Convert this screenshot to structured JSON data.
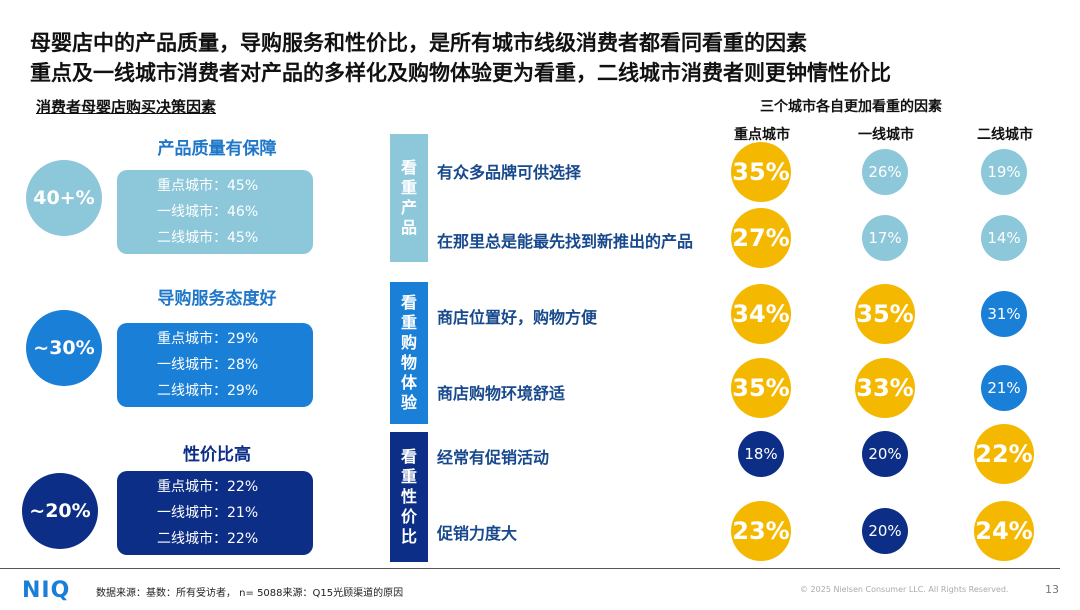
{
  "title": {
    "line1": "母婴店中的产品质量，导购服务和性价比，是所有城市线级消费者都看同看重的因素",
    "line2": "重点及一线城市消费者对产品的多样化及购物体验更为看重，二线城市消费者则更钟情性价比"
  },
  "left_header": "消费者母婴店购买决策因素",
  "right_header": "三个城市各自更加看重的因素",
  "colors": {
    "light_blue": "#8cc7da",
    "mid_blue": "#1a7fd6",
    "dark_blue": "#0d2e86",
    "gold": "#f5b800",
    "title_blue": "#1f77c9",
    "label_blue": "#17498c"
  },
  "factors": [
    {
      "title": "产品质量有保障",
      "badge": "40+%",
      "lines": [
        "重点城市：45%",
        "一线城市：46%",
        "二线城市：45%"
      ]
    },
    {
      "title": "导购服务态度好",
      "badge": "~30%",
      "lines": [
        "重点城市：29%",
        "一线城市：28%",
        "二线城市：29%"
      ]
    },
    {
      "title": "性价比高",
      "badge": "~20%",
      "lines": [
        "重点城市：22%",
        "一线城市：21%",
        "二线城市：22%"
      ]
    }
  ],
  "categories": [
    "看重产品",
    "看重购物体验",
    "看重性价比"
  ],
  "chart_data": {
    "type": "table",
    "columns": [
      "重点城市",
      "一线城市",
      "二线城市"
    ],
    "rows": [
      {
        "label": "有众多品牌可供选择",
        "values": [
          35,
          26,
          19
        ],
        "highlight": [
          true,
          false,
          false
        ]
      },
      {
        "label": "在那里总是能最先找到新推出的产品",
        "values": [
          27,
          17,
          14
        ],
        "highlight": [
          true,
          false,
          false
        ]
      },
      {
        "label": "商店位置好，购物方便",
        "values": [
          34,
          35,
          31
        ],
        "highlight": [
          true,
          true,
          false
        ]
      },
      {
        "label": "商店购物环境舒适",
        "values": [
          35,
          33,
          21
        ],
        "highlight": [
          true,
          true,
          false
        ]
      },
      {
        "label": "经常有促销活动",
        "values": [
          18,
          20,
          22
        ],
        "highlight": [
          false,
          false,
          true
        ]
      },
      {
        "label": "促销力度大",
        "values": [
          23,
          20,
          24
        ],
        "highlight": [
          true,
          false,
          true
        ]
      }
    ],
    "unit": "%"
  },
  "footer": {
    "logo": "NIQ",
    "source": "数据来源：基数：所有受访者， n= 5088来源：Q15光顾渠道的原因",
    "copyright": "© 2025 Nielsen Consumer LLC. All Rights Reserved.",
    "page": "13"
  }
}
